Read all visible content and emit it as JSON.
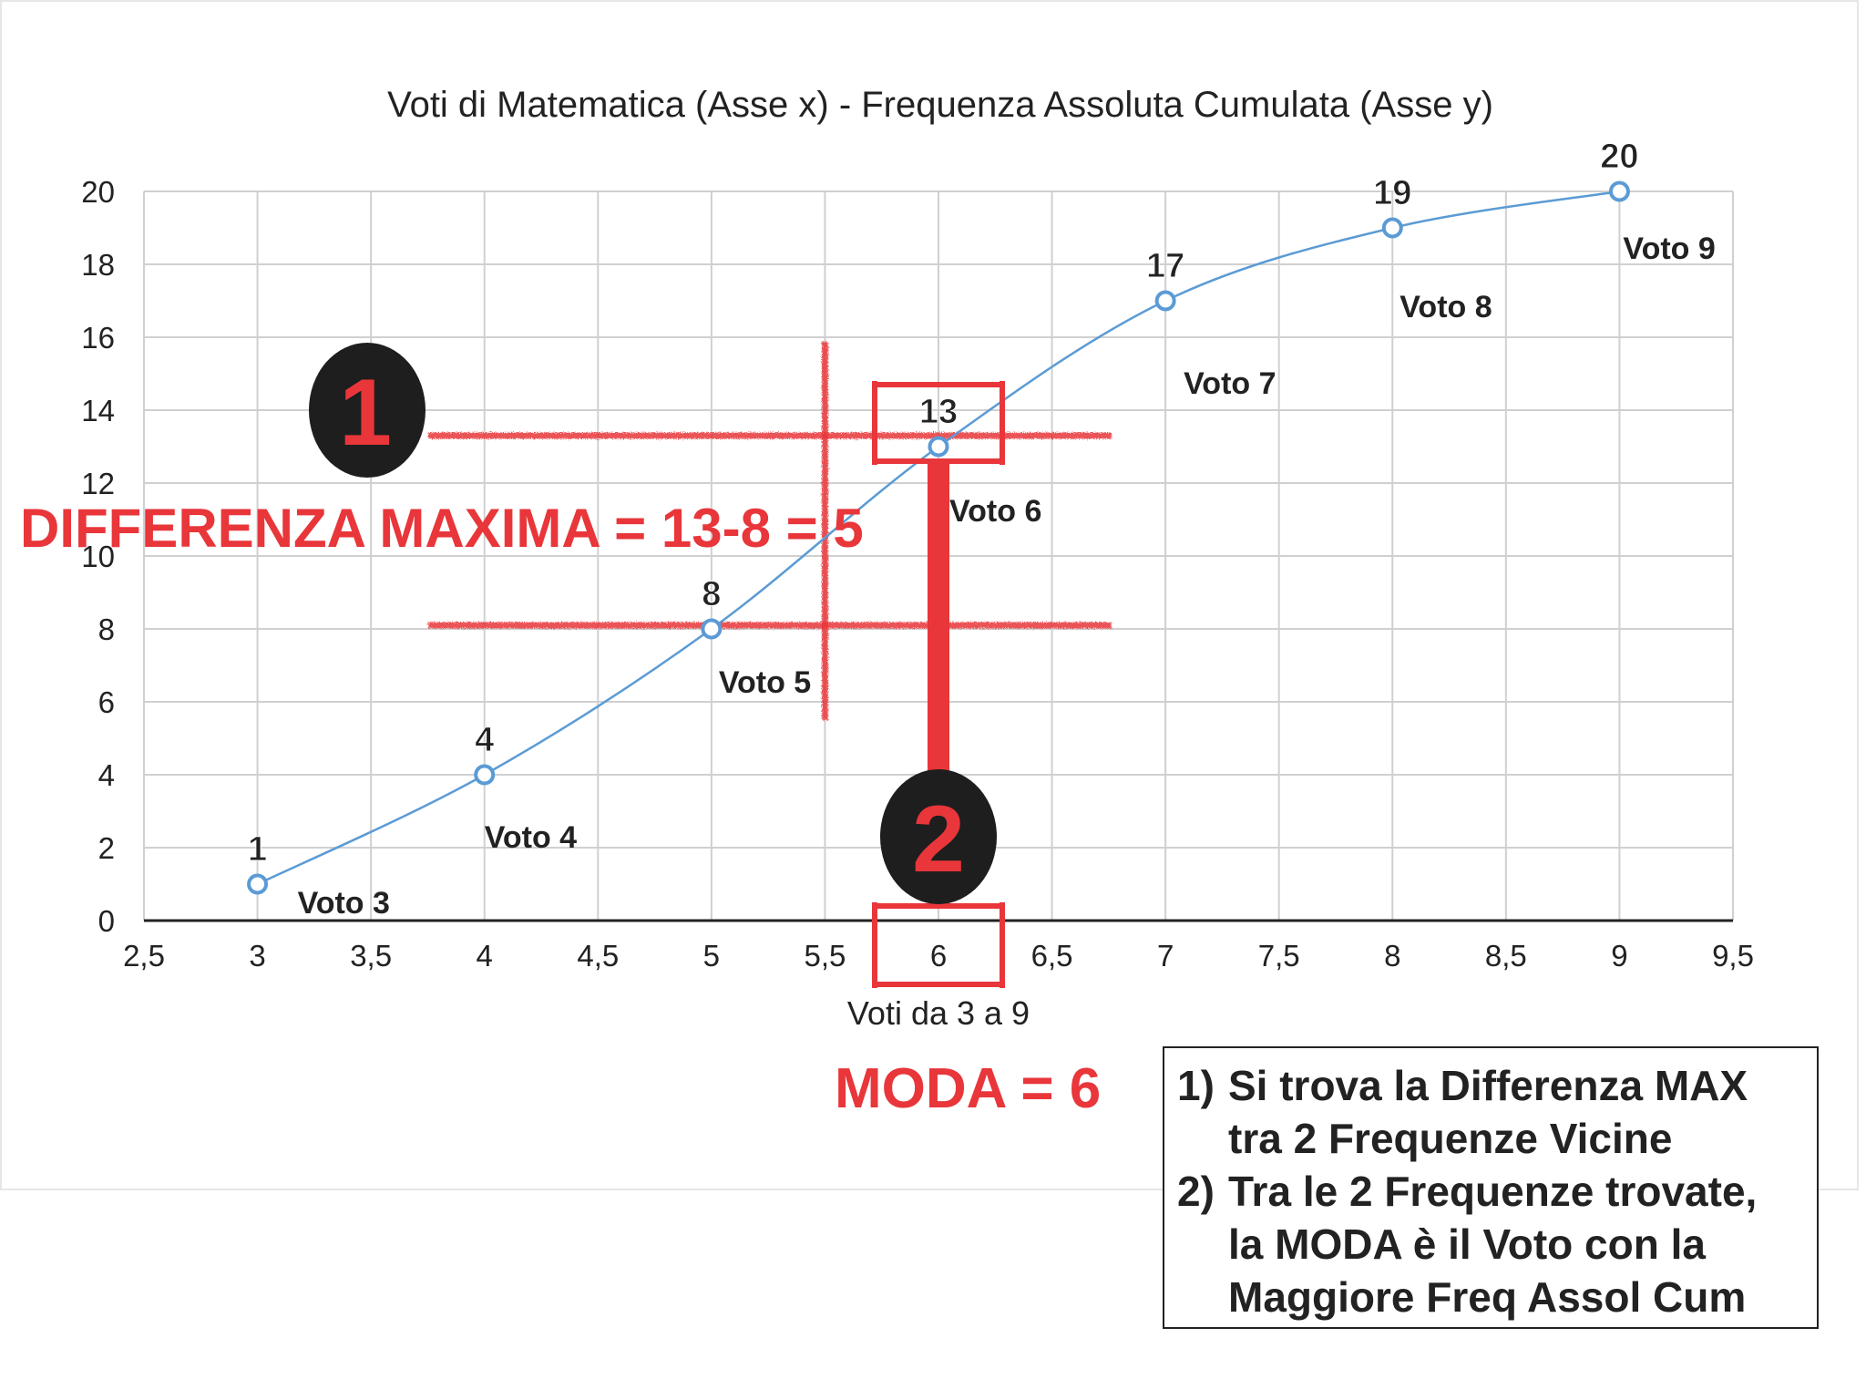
{
  "chart_data": {
    "type": "line",
    "title": "Voti di Matematica (Asse x) - Frequenza Assoluta Cumulata (Asse y)",
    "xlabel": "Voti da 3 a 9",
    "ylabel": "",
    "xlim": [
      2.5,
      9.5
    ],
    "ylim": [
      0,
      20
    ],
    "x_ticks": [
      "2,5",
      "3",
      "3,5",
      "4",
      "4,5",
      "5",
      "5,5",
      "6",
      "6,5",
      "7",
      "7,5",
      "8",
      "8,5",
      "9",
      "9,5"
    ],
    "y_ticks": [
      "0",
      "2",
      "4",
      "6",
      "8",
      "10",
      "12",
      "14",
      "16",
      "18",
      "20"
    ],
    "grid": true,
    "series": [
      {
        "points": [
          {
            "x": 3,
            "y": 1,
            "value_label": "1",
            "point_label": "Voto 3"
          },
          {
            "x": 4,
            "y": 4,
            "value_label": "4",
            "point_label": "Voto 4"
          },
          {
            "x": 5,
            "y": 8,
            "value_label": "8",
            "point_label": "Voto 5"
          },
          {
            "x": 6,
            "y": 13,
            "value_label": "13",
            "point_label": "Voto 6"
          },
          {
            "x": 7,
            "y": 17,
            "value_label": "17",
            "point_label": "Voto 7"
          },
          {
            "x": 8,
            "y": 19,
            "value_label": "19",
            "point_label": "Voto 8"
          },
          {
            "x": 9,
            "y": 20,
            "value_label": "20",
            "point_label": "Voto 9"
          }
        ]
      }
    ]
  },
  "annotations": {
    "marker_1": "1",
    "marker_2": "2",
    "difference_text": "DIFFERENZA MAXIMA = 13-8 = 5",
    "moda_text": "MODA = 6"
  },
  "notes": [
    {
      "index": "1)",
      "lines": [
        "Si trova la Differenza MAX",
        "tra 2 Frequenze Vicine"
      ]
    },
    {
      "index": "2)",
      "lines": [
        "Tra le 2 Frequenze trovate,",
        "la MODA è il Voto con la",
        "Maggiore Freq Assol Cum"
      ]
    }
  ],
  "colors": {
    "line": "#5b9bd5",
    "annotation_red": "#e8363a",
    "marker_fill": "#1e1e1e",
    "grid": "#d0d0d0"
  }
}
